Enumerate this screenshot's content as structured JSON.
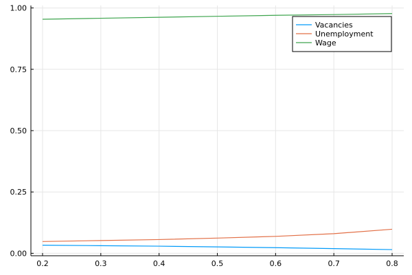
{
  "chart_data": {
    "type": "line",
    "title": "",
    "xlabel": "",
    "ylabel": "",
    "xlim": [
      0.18,
      0.82
    ],
    "ylim": [
      -0.01,
      1.01
    ],
    "grid": true,
    "legend_position": "top-right",
    "x_ticks": [
      0.2,
      0.3,
      0.4,
      0.5,
      0.6,
      0.7,
      0.8
    ],
    "x_tick_labels": [
      "0.2",
      "0.3",
      "0.4",
      "0.5",
      "0.6",
      "0.7",
      "0.8"
    ],
    "y_ticks": [
      0.0,
      0.25,
      0.5,
      0.75,
      1.0
    ],
    "y_tick_labels": [
      "0.00",
      "0.25",
      "0.50",
      "0.75",
      "1.00"
    ],
    "x": [
      0.2,
      0.3,
      0.4,
      0.5,
      0.6,
      0.7,
      0.8
    ],
    "series": [
      {
        "name": "Vacancies",
        "color": "#009af9",
        "values": [
          0.033,
          0.031,
          0.029,
          0.026,
          0.023,
          0.019,
          0.015
        ]
      },
      {
        "name": "Unemployment",
        "color": "#e26f46",
        "values": [
          0.048,
          0.052,
          0.056,
          0.062,
          0.069,
          0.08,
          0.098
        ]
      },
      {
        "name": "Wage",
        "color": "#3da44d",
        "values": [
          0.954,
          0.958,
          0.962,
          0.966,
          0.97,
          0.973,
          0.977
        ]
      }
    ]
  }
}
